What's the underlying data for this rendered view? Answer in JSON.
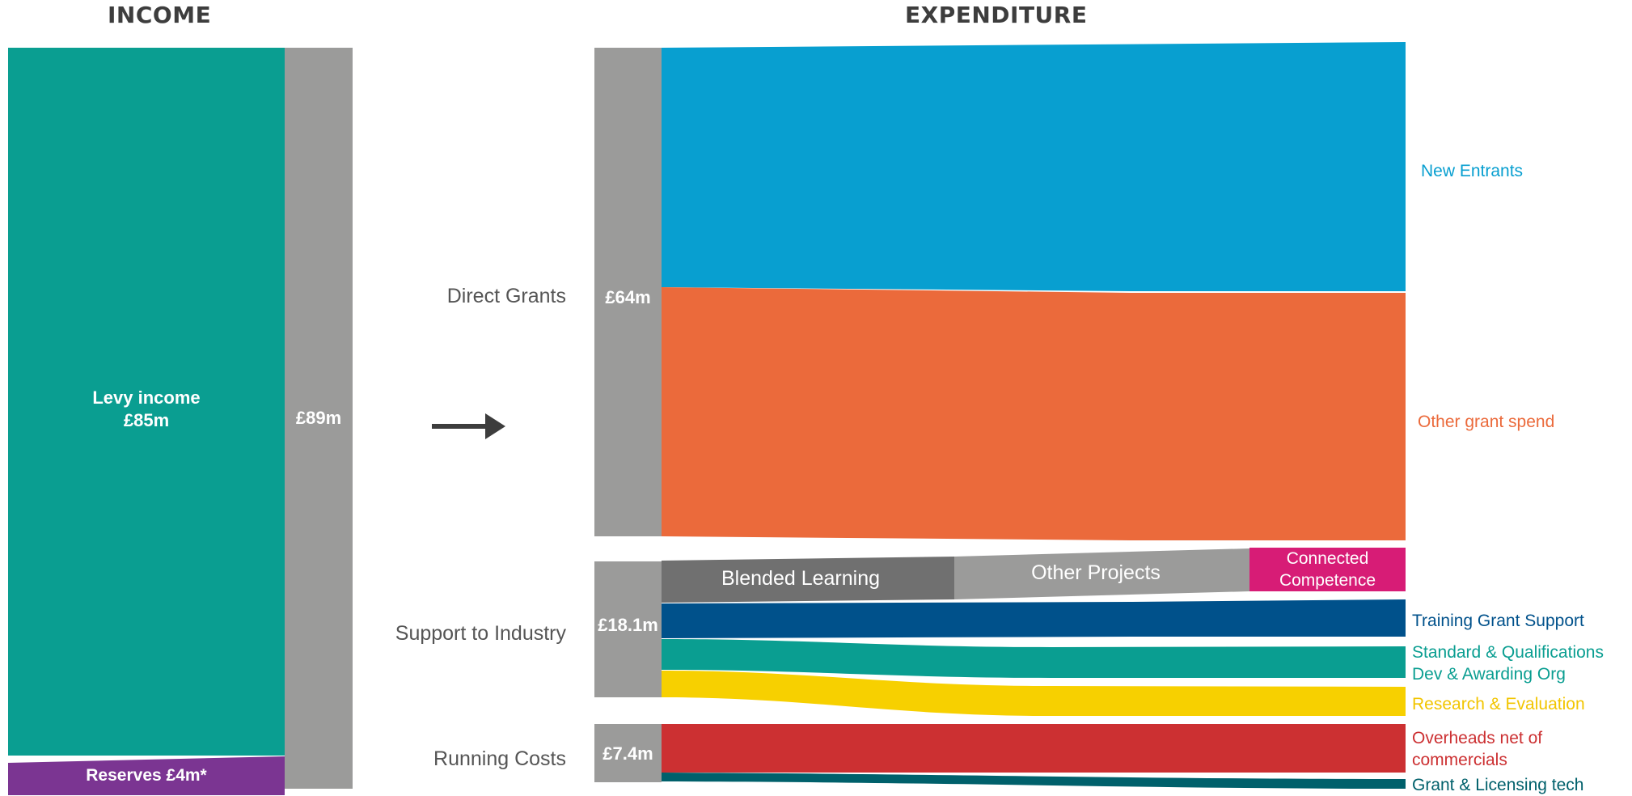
{
  "headers": {
    "income": "INCOME",
    "expenditure": "EXPENDITURE"
  },
  "income": {
    "levy_line1": "Levy income",
    "levy_line2": "£85m",
    "reserves": "Reserves £4m*",
    "total": "£89m"
  },
  "expenditure": {
    "direct_grants": {
      "label": "Direct Grants",
      "value": "£64m"
    },
    "support_to_industry": {
      "label": "Support to Industry",
      "value": "£18.1m"
    },
    "running_costs": {
      "label": "Running Costs",
      "value": "£7.4m"
    }
  },
  "flows": {
    "new_entrants": "New Entrants",
    "other_grant_spend": "Other grant spend",
    "blended_learning": "Blended Learning",
    "other_projects": "Other Projects",
    "connected_line1": "Connected",
    "connected_line2": "Competence",
    "training_grant_support": "Training Grant Support",
    "standard_line1": "Standard & Qualifications",
    "standard_line2": "Dev & Awarding Org",
    "research_evaluation": "Research & Evaluation",
    "overheads_line1": "Overheads net of",
    "overheads_line2": "commercials",
    "grant_licensing": "Grant & Licensing tech"
  },
  "colors": {
    "teal": "#0a9e91",
    "purple": "#7b3592",
    "grey_node": "#9b9b9a",
    "blue": "#089fd0",
    "orange": "#eb6a3b",
    "dark_grey": "#707070",
    "magenta": "#d71c76",
    "navy": "#00518b",
    "yellow": "#f7d000",
    "red": "#cc3032",
    "dark_teal": "#00606b",
    "arrow": "#3d3d3d"
  }
}
